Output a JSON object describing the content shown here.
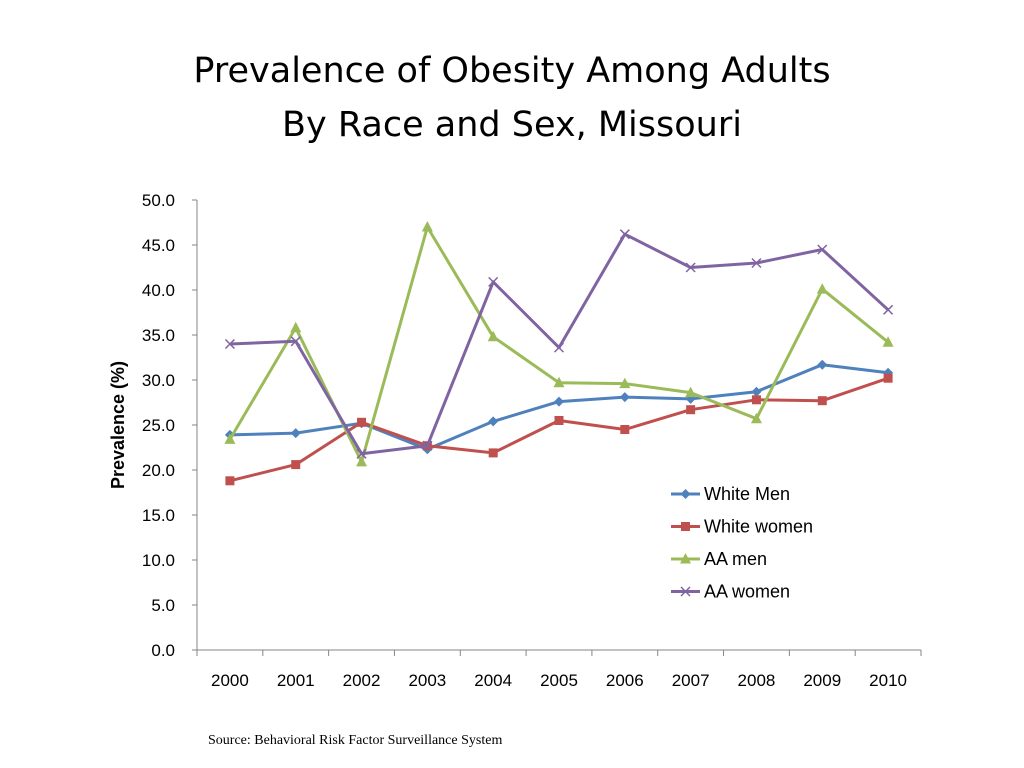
{
  "title_lines": [
    "Prevalence of Obesity Among Adults",
    "By Race and Sex, Missouri"
  ],
  "source": "Source: Behavioral Risk Factor Surveillance System",
  "chart_data": {
    "type": "line",
    "title": "Prevalence of Obesity Among Adults By Race and Sex, Missouri",
    "xlabel": "",
    "ylabel": "Prevalence (%)",
    "categories": [
      "2000",
      "2001",
      "2002",
      "2003",
      "2004",
      "2005",
      "2006",
      "2007",
      "2008",
      "2009",
      "2010"
    ],
    "ylim": [
      0,
      50
    ],
    "yticks": [
      "0.0",
      "5.0",
      "10.0",
      "15.0",
      "20.0",
      "25.0",
      "30.0",
      "35.0",
      "40.0",
      "45.0",
      "50.0"
    ],
    "grid": false,
    "legend": "right",
    "series": [
      {
        "name": "White Men",
        "color": "#4f81bd",
        "marker": "diamond",
        "values": [
          23.9,
          24.1,
          25.2,
          22.3,
          25.4,
          27.6,
          28.1,
          27.9,
          28.7,
          31.7,
          30.8
        ]
      },
      {
        "name": "White women",
        "color": "#c0504d",
        "marker": "square",
        "values": [
          18.8,
          20.6,
          25.3,
          22.7,
          21.9,
          25.5,
          24.5,
          26.7,
          27.8,
          27.7,
          30.2
        ]
      },
      {
        "name": "AA men",
        "color": "#9bbb59",
        "marker": "triangle",
        "values": [
          23.4,
          35.8,
          20.9,
          47.0,
          34.8,
          29.7,
          29.6,
          28.6,
          25.7,
          40.1,
          34.2
        ]
      },
      {
        "name": "AA women",
        "color": "#8064a2",
        "marker": "x",
        "values": [
          34.0,
          34.3,
          21.8,
          22.7,
          40.9,
          33.6,
          46.2,
          42.5,
          43.0,
          44.5,
          37.8
        ]
      }
    ]
  }
}
